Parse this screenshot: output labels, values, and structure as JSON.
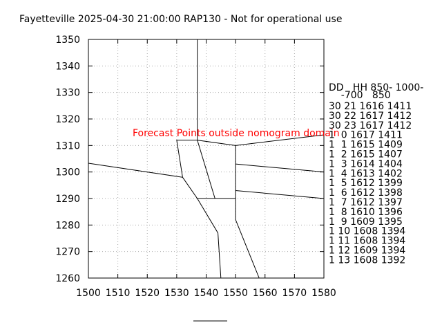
{
  "chart_data": {
    "type": "line",
    "title": "Fayetteville 2025-04-30 21:00:00 RAP130 - Not for operational use",
    "annotation": "Forecast Points outside nomogram domain",
    "annotation_color": "#ff0000",
    "xlim": [
      1500,
      1580
    ],
    "ylim": [
      1260,
      1350
    ],
    "xticks": [
      1500,
      1510,
      1520,
      1530,
      1540,
      1550,
      1560,
      1570,
      1580
    ],
    "yticks": [
      1260,
      1270,
      1280,
      1290,
      1300,
      1310,
      1320,
      1330,
      1340,
      1350
    ],
    "grid": true,
    "series": [
      {
        "color": "#000000",
        "x": [
          1537,
          1537,
          1550,
          1580
        ],
        "values": [
          1350,
          1312,
          1310,
          1314
        ]
      },
      {
        "color": "#000000",
        "x": [
          1537,
          1530,
          1532,
          1500
        ],
        "values": [
          1312,
          1312,
          1298,
          1303.3
        ]
      },
      {
        "color": "#000000",
        "x": [
          1532,
          1537,
          1550,
          1550
        ],
        "values": [
          1298,
          1290,
          1290,
          1310
        ]
      },
      {
        "color": "#000000",
        "x": [
          1537,
          1543
        ],
        "values": [
          1312,
          1290
        ]
      },
      {
        "color": "#000000",
        "x": [
          1550,
          1580
        ],
        "values": [
          1303,
          1300
        ]
      },
      {
        "color": "#000000",
        "x": [
          1550,
          1580
        ],
        "values": [
          1293,
          1290
        ]
      },
      {
        "color": "#000000",
        "x": [
          1537,
          1544,
          1545
        ],
        "values": [
          1290,
          1277,
          1260
        ]
      },
      {
        "color": "#000000",
        "x": [
          1550,
          1550,
          1558
        ],
        "values": [
          1290,
          1282,
          1260
        ]
      }
    ],
    "table_header": [
      "DD   HH 850- 1000-",
      "    -700   850"
    ],
    "table_rows": [
      "30 21 1616 1411",
      "30 22 1617 1412",
      "30 23 1617 1412",
      "1  0 1617 1411",
      "1  1 1615 1409",
      "1  2 1615 1407",
      "1  3 1614 1404",
      "1  4 1613 1402",
      "1  5 1612 1399",
      "1  6 1612 1398",
      "1  7 1612 1397",
      "1  8 1610 1396",
      "1  9 1609 1395",
      "1 10 1608 1394",
      "1 11 1608 1394",
      "1 12 1609 1394",
      "1 13 1608 1392"
    ]
  }
}
